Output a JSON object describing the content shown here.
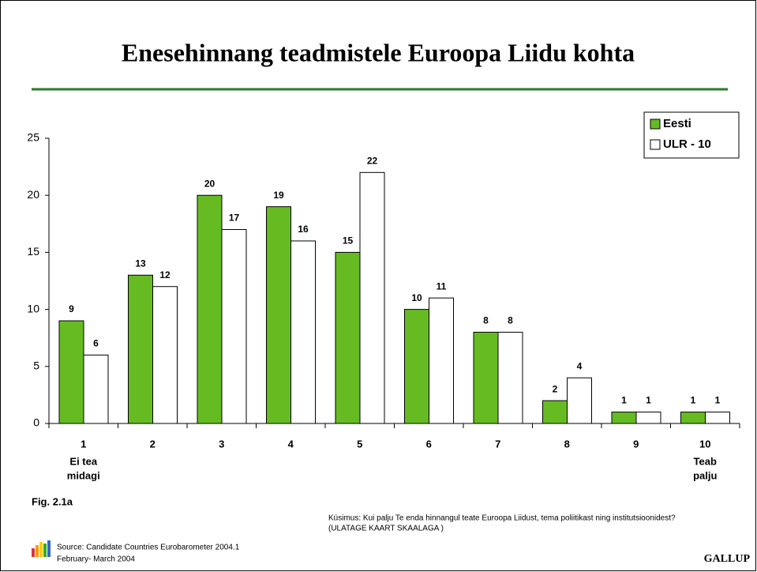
{
  "chart_data": {
    "type": "bar",
    "title": "Enesehinnang teadmistele Euroopa Liidu kohta",
    "categories": [
      "1",
      "2",
      "3",
      "4",
      "5",
      "6",
      "7",
      "8",
      "9",
      "10"
    ],
    "annotations": [
      [
        "Ei tea",
        "midagi"
      ],
      [
        "Teab",
        "palju"
      ]
    ],
    "series": [
      {
        "name": "Eesti",
        "color": "#66bb22",
        "values": [
          9,
          13,
          20,
          19,
          15,
          10,
          8,
          2,
          1,
          1
        ]
      },
      {
        "name": "ULR - 10",
        "color": "#ffffff",
        "values": [
          6,
          12,
          17,
          16,
          22,
          11,
          8,
          4,
          1,
          1
        ]
      }
    ],
    "ylim": [
      0,
      25
    ],
    "yticks": [
      0,
      5,
      10,
      15,
      20,
      25
    ],
    "legend": "top-right",
    "figure_label": "Fig. 2.1a",
    "question": [
      "Küsimus:  Kui palju Te enda hinnangul teate Euroopa Liidust, tema poliitikast ning institutsioonidest?",
      "(ULATAGE KAART SKAALAGA )"
    ],
    "source": [
      "Source: Candidate Countries Eurobarometer 2004.1",
      "February- March  2004"
    ],
    "brand": "GALLUP"
  }
}
